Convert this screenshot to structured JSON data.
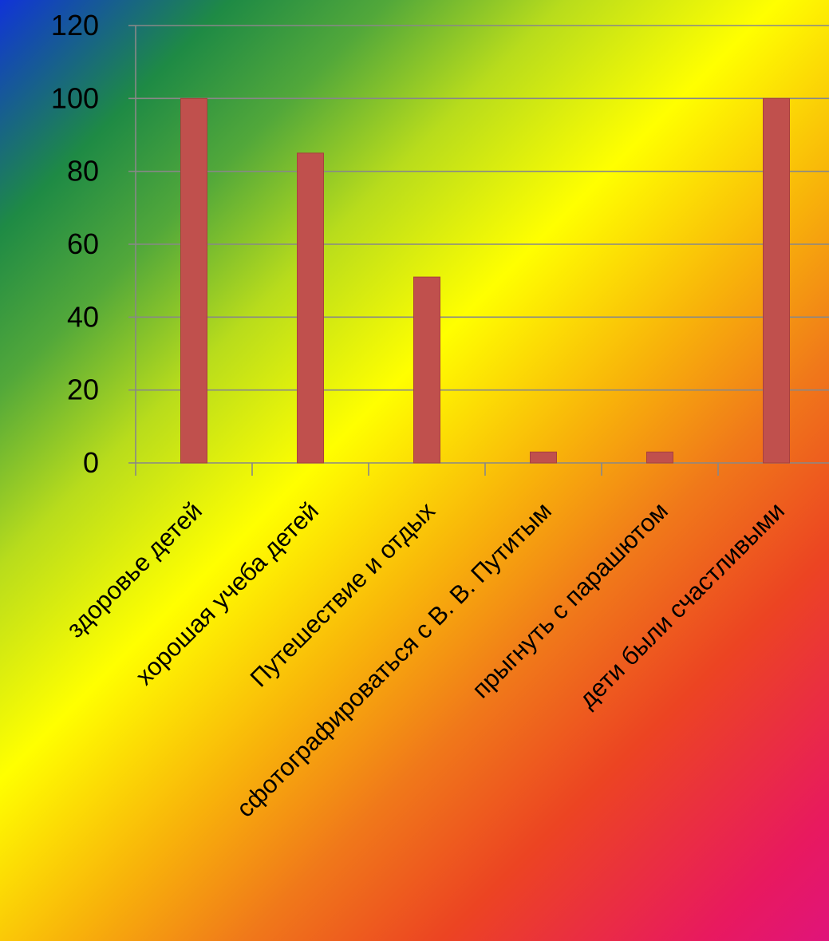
{
  "chart_data": {
    "type": "bar",
    "categories": [
      "здоровье детей",
      "хорошая учеба детей",
      "Путешествие и отдых",
      "сфотографироваться с В. В. Путитым",
      "прыгнуть с парашютом",
      "дети были счастливыми"
    ],
    "values": [
      100,
      85,
      51,
      3,
      3,
      100
    ],
    "ylim": [
      0,
      120
    ],
    "yticks": [
      "0",
      "20",
      "40",
      "60",
      "80",
      "100",
      "120"
    ],
    "title": "",
    "xlabel": "",
    "ylabel": "",
    "grid": "horizontal",
    "legend": "none",
    "colors": {
      "bar": "#c0504d",
      "grid": "#888888",
      "axis": "#888888"
    }
  }
}
